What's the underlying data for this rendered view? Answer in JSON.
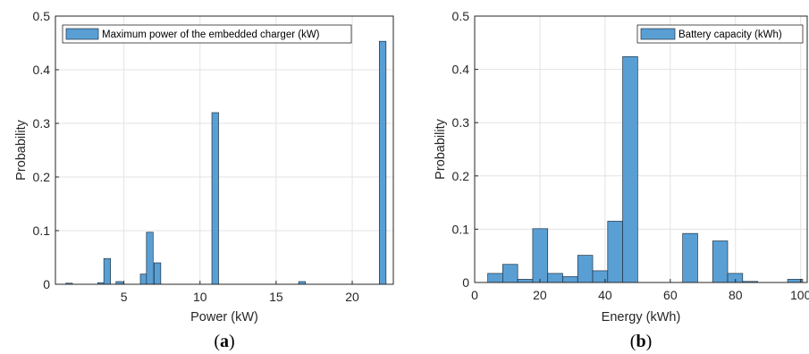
{
  "chart_data": [
    {
      "type": "bar",
      "panel_caption": "a",
      "xlabel": "Power (kW)",
      "ylabel": "Probability",
      "xlim": [
        0.5,
        22.7
      ],
      "ylim": [
        0,
        0.5
      ],
      "xticks": [
        5,
        10,
        15,
        20
      ],
      "yticks": [
        0,
        0.1,
        0.2,
        0.3,
        0.4,
        0.5
      ],
      "grid": true,
      "legend": {
        "location": "top-left",
        "entries": [
          "Maximum power of the embedded charger (kW)"
        ]
      },
      "series": [
        {
          "name": "Maximum power of the embedded charger (kW)",
          "color": "#5a9fd4",
          "bin_width": 0.44,
          "bins": [
            {
              "center": 1.4,
              "value": 0.002
            },
            {
              "center": 3.5,
              "value": 0.003
            },
            {
              "center": 3.9,
              "value": 0.048
            },
            {
              "center": 4.7,
              "value": 0.005
            },
            {
              "center": 6.3,
              "value": 0.019
            },
            {
              "center": 6.7,
              "value": 0.097
            },
            {
              "center": 7.2,
              "value": 0.04
            },
            {
              "center": 11.0,
              "value": 0.32
            },
            {
              "center": 16.7,
              "value": 0.005
            },
            {
              "center": 22.0,
              "value": 0.453
            }
          ]
        }
      ]
    },
    {
      "type": "bar",
      "panel_caption": "b",
      "xlabel": "Energy (kWh)",
      "ylabel": "Probability",
      "xlim": [
        0,
        102
      ],
      "ylim": [
        0,
        0.5
      ],
      "xticks": [
        0,
        20,
        40,
        60,
        80,
        100
      ],
      "yticks": [
        0,
        0.1,
        0.2,
        0.3,
        0.4,
        0.5
      ],
      "grid": true,
      "legend": {
        "location": "top-right",
        "entries": [
          "Battery capacity (kWh)"
        ]
      },
      "series": [
        {
          "name": "Battery capacity (kWh)",
          "color": "#5a9fd4",
          "bin_width": 4.6,
          "bins": [
            {
              "center": 6.3,
              "value": 0.017
            },
            {
              "center": 10.9,
              "value": 0.034
            },
            {
              "center": 15.5,
              "value": 0.006
            },
            {
              "center": 20.1,
              "value": 0.101
            },
            {
              "center": 24.7,
              "value": 0.017
            },
            {
              "center": 29.3,
              "value": 0.011
            },
            {
              "center": 33.9,
              "value": 0.051
            },
            {
              "center": 38.5,
              "value": 0.022
            },
            {
              "center": 43.1,
              "value": 0.115
            },
            {
              "center": 47.7,
              "value": 0.424
            },
            {
              "center": 52.3,
              "value": 0.0
            },
            {
              "center": 56.9,
              "value": 0.0
            },
            {
              "center": 61.5,
              "value": 0.0
            },
            {
              "center": 66.1,
              "value": 0.092
            },
            {
              "center": 70.7,
              "value": 0.0
            },
            {
              "center": 75.3,
              "value": 0.078
            },
            {
              "center": 79.9,
              "value": 0.017
            },
            {
              "center": 84.5,
              "value": 0.002
            },
            {
              "center": 89.1,
              "value": 0.0
            },
            {
              "center": 93.7,
              "value": 0.0
            },
            {
              "center": 98.3,
              "value": 0.006
            }
          ]
        }
      ]
    }
  ]
}
